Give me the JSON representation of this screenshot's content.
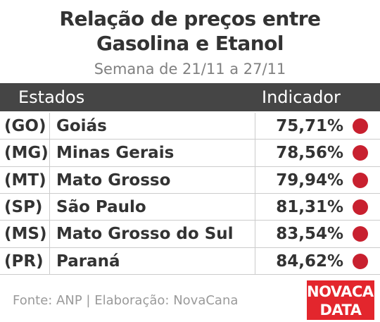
{
  "header": {
    "title_lines": [
      "Relação de preços entre",
      "Gasolina e Etanol"
    ],
    "subtitle": "Semana de 21/11 a 27/11"
  },
  "table": {
    "columns": [
      "Estados",
      "Indicador"
    ],
    "rows": [
      [
        "(GO)",
        "Goiás",
        "75,71%"
      ],
      [
        "(MG)",
        "Minas Gerais",
        "78,56%"
      ],
      [
        "(MT)",
        "Mato Grosso",
        "79,94%"
      ],
      [
        "(SP)",
        "São Paulo",
        "81,31%"
      ],
      [
        "(MS)",
        "Mato Grosso do Sul",
        "83,54%"
      ],
      [
        "(PR)",
        "Paraná",
        "84,62%"
      ]
    ]
  },
  "footer": {
    "source": "Fonte: ANP | Elaboração: NovaCana",
    "logo_lines": [
      "NOVACANA",
      "DATA"
    ]
  }
}
